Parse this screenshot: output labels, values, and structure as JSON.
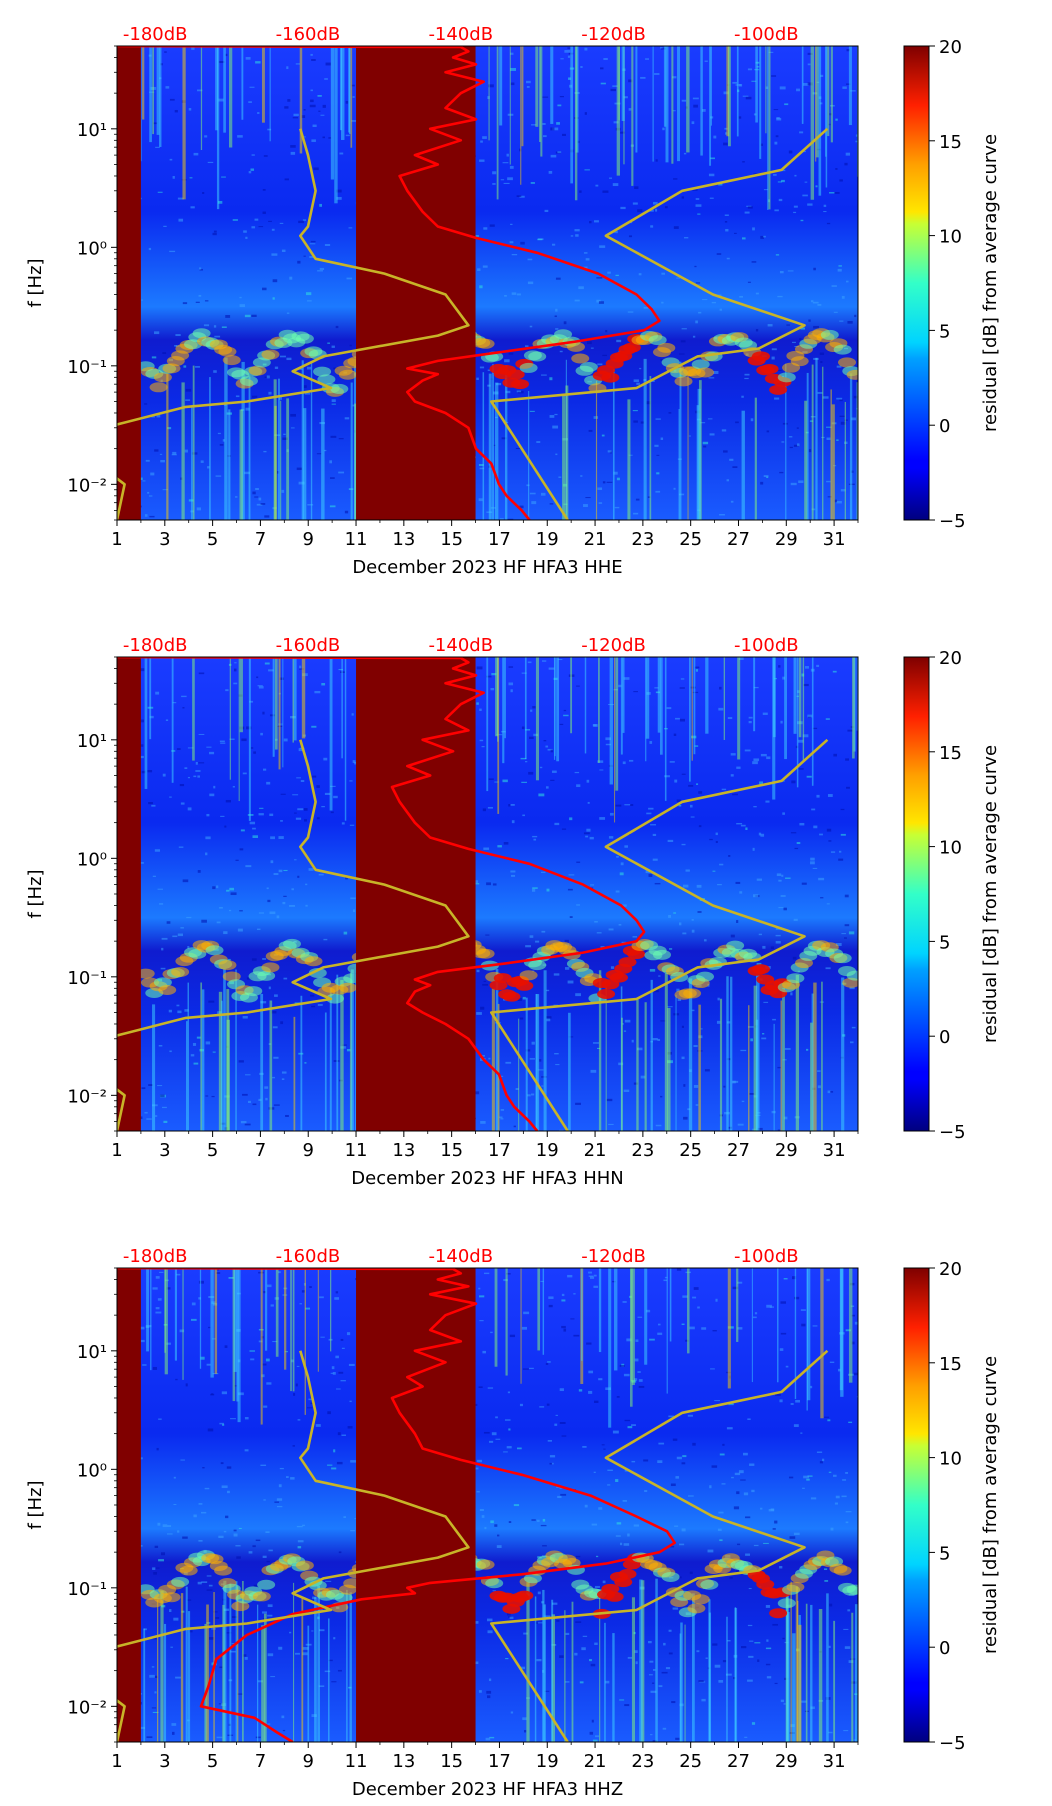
{
  "chart_data": [
    {
      "type": "heatmap",
      "title": "",
      "xlabel": "December 2023 HF HFA3  HHE",
      "ylabel": "f [Hz]",
      "x_ticks": [
        "1",
        "3",
        "5",
        "7",
        "9",
        "11",
        "13",
        "15",
        "17",
        "19",
        "21",
        "23",
        "25",
        "27",
        "29",
        "31"
      ],
      "x_range": [
        1,
        32
      ],
      "y_ticks": [
        "10⁻²",
        "10⁻¹",
        "10⁰",
        "10¹"
      ],
      "y_scale": "log",
      "y_range": [
        0.005,
        50
      ],
      "top_ticks": [
        "-180dB",
        "-160dB",
        "-140dB",
        "-120dB",
        "-100dB"
      ],
      "colorbar": {
        "label": "residual [dB] from average curve",
        "ticks": [
          "20",
          "15",
          "10",
          "5",
          "0",
          "−5"
        ],
        "range": [
          -5,
          20
        ],
        "colormap": "jet"
      },
      "masked_day_ranges": [
        [
          1,
          2
        ],
        [
          11,
          16
        ]
      ],
      "series": [
        {
          "color": "#ff0000",
          "points": [
            [
              -185,
              50
            ],
            [
              -140,
              49
            ],
            [
              -139,
              45
            ],
            [
              -141,
              40
            ],
            [
              -138,
              35
            ],
            [
              -142,
              30
            ],
            [
              -137,
              25
            ],
            [
              -140,
              20
            ],
            [
              -142,
              15
            ],
            [
              -138,
              12
            ],
            [
              -144,
              10
            ],
            [
              -140,
              8
            ],
            [
              -146,
              6
            ],
            [
              -143,
              5
            ],
            [
              -148,
              4
            ],
            [
              -147,
              3
            ],
            [
              -145,
              2
            ],
            [
              -143,
              1.5
            ],
            [
              -138,
              1.2
            ],
            [
              -130,
              0.9
            ],
            [
              -122,
              0.6
            ],
            [
              -117,
              0.4
            ],
            [
              -115,
              0.3
            ],
            [
              -114,
              0.24
            ],
            [
              -116,
              0.2
            ],
            [
              -125,
              0.16
            ],
            [
              -135,
              0.13
            ],
            [
              -143,
              0.11
            ],
            [
              -147,
              0.095
            ],
            [
              -143,
              0.085
            ],
            [
              -145,
              0.075
            ],
            [
              -147,
              0.06
            ],
            [
              -146,
              0.05
            ],
            [
              -142,
              0.04
            ],
            [
              -139,
              0.03
            ],
            [
              -138,
              0.02
            ],
            [
              -136,
              0.015
            ],
            [
              -135,
              0.01
            ],
            [
              -134,
              0.008
            ],
            [
              -132,
              0.006
            ],
            [
              -131,
              0.005
            ]
          ]
        },
        {
          "color": "#c8b428",
          "points": [
            [
              -161,
              10
            ],
            [
              -160,
              6
            ],
            [
              -159,
              3
            ],
            [
              -160,
              1.5
            ],
            [
              -161,
              1.25
            ],
            [
              -159,
              0.8
            ],
            [
              -150,
              0.6
            ],
            [
              -142,
              0.4
            ],
            [
              -139,
              0.22
            ],
            [
              -143,
              0.18
            ],
            [
              -158,
              0.12
            ],
            [
              -162,
              0.09
            ],
            [
              -157,
              0.065
            ],
            [
              -168,
              0.05
            ],
            [
              -176,
              0.045
            ],
            [
              -185,
              0.032
            ],
            [
              -187,
              0.022
            ],
            [
              -187,
              0.014
            ],
            [
              -184,
              0.01
            ],
            [
              -185,
              0.005
            ]
          ]
        },
        {
          "color": "#c8b428",
          "points": [
            [
              -126,
              0.005
            ],
            [
              -136,
              0.05
            ],
            [
              -117,
              0.065
            ],
            [
              -109,
              0.12
            ],
            [
              -101,
              0.14
            ],
            [
              -95,
              0.22
            ],
            [
              -107,
              0.4
            ],
            [
              -121,
              1.25
            ],
            [
              -111,
              3
            ],
            [
              -98,
              4.5
            ],
            [
              -92,
              10
            ]
          ]
        }
      ]
    },
    {
      "type": "heatmap",
      "title": "",
      "xlabel": "December 2023 HF HFA3  HHN",
      "ylabel": "f [Hz]",
      "x_ticks": [
        "1",
        "3",
        "5",
        "7",
        "9",
        "11",
        "13",
        "15",
        "17",
        "19",
        "21",
        "23",
        "25",
        "27",
        "29",
        "31"
      ],
      "x_range": [
        1,
        32
      ],
      "y_ticks": [
        "10⁻²",
        "10⁻¹",
        "10⁰",
        "10¹"
      ],
      "y_scale": "log",
      "y_range": [
        0.005,
        50
      ],
      "top_ticks": [
        "-180dB",
        "-160dB",
        "-140dB",
        "-120dB",
        "-100dB"
      ],
      "colorbar": {
        "label": "residual [dB] from average curve",
        "ticks": [
          "20",
          "15",
          "10",
          "5",
          "0",
          "−5"
        ],
        "range": [
          -5,
          20
        ],
        "colormap": "jet"
      },
      "masked_day_ranges": [
        [
          1,
          2
        ],
        [
          11,
          16
        ]
      ],
      "series": [
        {
          "color": "#ff0000",
          "points": [
            [
              -185,
              50
            ],
            [
              -140,
              49
            ],
            [
              -139,
              45
            ],
            [
              -141,
              40
            ],
            [
              -138,
              35
            ],
            [
              -142,
              30
            ],
            [
              -137,
              25
            ],
            [
              -140,
              20
            ],
            [
              -142,
              15
            ],
            [
              -139,
              12
            ],
            [
              -145,
              10
            ],
            [
              -141,
              8
            ],
            [
              -147,
              6
            ],
            [
              -144,
              5
            ],
            [
              -149,
              4
            ],
            [
              -148,
              3
            ],
            [
              -146,
              2
            ],
            [
              -144,
              1.5
            ],
            [
              -139,
              1.2
            ],
            [
              -131,
              0.9
            ],
            [
              -124,
              0.6
            ],
            [
              -119,
              0.4
            ],
            [
              -117,
              0.3
            ],
            [
              -116,
              0.24
            ],
            [
              -117,
              0.2
            ],
            [
              -124,
              0.16
            ],
            [
              -134,
              0.13
            ],
            [
              -143,
              0.11
            ],
            [
              -146,
              0.095
            ],
            [
              -144,
              0.085
            ],
            [
              -146,
              0.075
            ],
            [
              -147,
              0.06
            ],
            [
              -145,
              0.05
            ],
            [
              -142,
              0.04
            ],
            [
              -139,
              0.03
            ],
            [
              -137,
              0.02
            ],
            [
              -135,
              0.015
            ],
            [
              -134,
              0.01
            ],
            [
              -133,
              0.008
            ],
            [
              -131,
              0.006
            ],
            [
              -130,
              0.005
            ]
          ]
        },
        {
          "color": "#c8b428",
          "points": [
            [
              -161,
              10
            ],
            [
              -160,
              6
            ],
            [
              -159,
              3
            ],
            [
              -160,
              1.5
            ],
            [
              -161,
              1.25
            ],
            [
              -159,
              0.8
            ],
            [
              -150,
              0.6
            ],
            [
              -142,
              0.4
            ],
            [
              -139,
              0.22
            ],
            [
              -143,
              0.18
            ],
            [
              -158,
              0.12
            ],
            [
              -162,
              0.09
            ],
            [
              -157,
              0.065
            ],
            [
              -168,
              0.05
            ],
            [
              -176,
              0.045
            ],
            [
              -185,
              0.032
            ],
            [
              -187,
              0.022
            ],
            [
              -187,
              0.014
            ],
            [
              -184,
              0.01
            ],
            [
              -185,
              0.005
            ]
          ]
        },
        {
          "color": "#c8b428",
          "points": [
            [
              -126,
              0.005
            ],
            [
              -136,
              0.05
            ],
            [
              -117,
              0.065
            ],
            [
              -109,
              0.12
            ],
            [
              -101,
              0.14
            ],
            [
              -95,
              0.22
            ],
            [
              -107,
              0.4
            ],
            [
              -121,
              1.25
            ],
            [
              -111,
              3
            ],
            [
              -98,
              4.5
            ],
            [
              -92,
              10
            ]
          ]
        }
      ]
    },
    {
      "type": "heatmap",
      "title": "",
      "xlabel": "December 2023 HF HFA3  HHZ",
      "ylabel": "f [Hz]",
      "x_ticks": [
        "1",
        "3",
        "5",
        "7",
        "9",
        "11",
        "13",
        "15",
        "17",
        "19",
        "21",
        "23",
        "25",
        "27",
        "29",
        "31"
      ],
      "x_range": [
        1,
        32
      ],
      "y_ticks": [
        "10⁻²",
        "10⁻¹",
        "10⁰",
        "10¹"
      ],
      "y_scale": "log",
      "y_range": [
        0.005,
        50
      ],
      "top_ticks": [
        "-180dB",
        "-160dB",
        "-140dB",
        "-120dB",
        "-100dB"
      ],
      "colorbar": {
        "label": "residual [dB] from average curve",
        "ticks": [
          "20",
          "15",
          "10",
          "5",
          "0",
          "−5"
        ],
        "range": [
          -5,
          20
        ],
        "colormap": "jet"
      },
      "masked_day_ranges": [
        [
          1,
          2
        ],
        [
          11,
          16
        ]
      ],
      "series": [
        {
          "color": "#ff0000",
          "points": [
            [
              -185,
              50
            ],
            [
              -141,
              49
            ],
            [
              -140,
              45
            ],
            [
              -143,
              40
            ],
            [
              -139,
              35
            ],
            [
              -144,
              30
            ],
            [
              -138,
              25
            ],
            [
              -142,
              20
            ],
            [
              -144,
              15
            ],
            [
              -140,
              12
            ],
            [
              -146,
              10
            ],
            [
              -142,
              8
            ],
            [
              -147,
              6
            ],
            [
              -145,
              5
            ],
            [
              -149,
              4
            ],
            [
              -148,
              3
            ],
            [
              -146,
              2
            ],
            [
              -145,
              1.5
            ],
            [
              -140,
              1.2
            ],
            [
              -132,
              0.9
            ],
            [
              -123,
              0.6
            ],
            [
              -117,
              0.4
            ],
            [
              -113,
              0.3
            ],
            [
              -112,
              0.24
            ],
            [
              -114,
              0.2
            ],
            [
              -121,
              0.16
            ],
            [
              -132,
              0.13
            ],
            [
              -144,
              0.11
            ],
            [
              -147,
              0.1
            ],
            [
              -146,
              0.09
            ],
            [
              -153,
              0.08
            ],
            [
              -162,
              0.06
            ],
            [
              -168,
              0.04
            ],
            [
              -172,
              0.025
            ],
            [
              -173,
              0.015
            ],
            [
              -174,
              0.01
            ],
            [
              -167,
              0.008
            ],
            [
              -164,
              0.006
            ],
            [
              -162,
              0.005
            ]
          ]
        },
        {
          "color": "#c8b428",
          "points": [
            [
              -161,
              10
            ],
            [
              -160,
              6
            ],
            [
              -159,
              3
            ],
            [
              -160,
              1.5
            ],
            [
              -161,
              1.25
            ],
            [
              -159,
              0.8
            ],
            [
              -150,
              0.6
            ],
            [
              -142,
              0.4
            ],
            [
              -139,
              0.22
            ],
            [
              -143,
              0.18
            ],
            [
              -158,
              0.12
            ],
            [
              -162,
              0.09
            ],
            [
              -157,
              0.065
            ],
            [
              -168,
              0.05
            ],
            [
              -176,
              0.045
            ],
            [
              -185,
              0.032
            ],
            [
              -187,
              0.022
            ],
            [
              -187,
              0.014
            ],
            [
              -184,
              0.01
            ],
            [
              -185,
              0.005
            ]
          ]
        },
        {
          "color": "#c8b428",
          "points": [
            [
              -126,
              0.005
            ],
            [
              -136,
              0.05
            ],
            [
              -117,
              0.065
            ],
            [
              -109,
              0.12
            ],
            [
              -101,
              0.14
            ],
            [
              -95,
              0.22
            ],
            [
              -107,
              0.4
            ],
            [
              -121,
              1.25
            ],
            [
              -111,
              3
            ],
            [
              -98,
              4.5
            ],
            [
              -92,
              10
            ]
          ]
        }
      ]
    }
  ]
}
